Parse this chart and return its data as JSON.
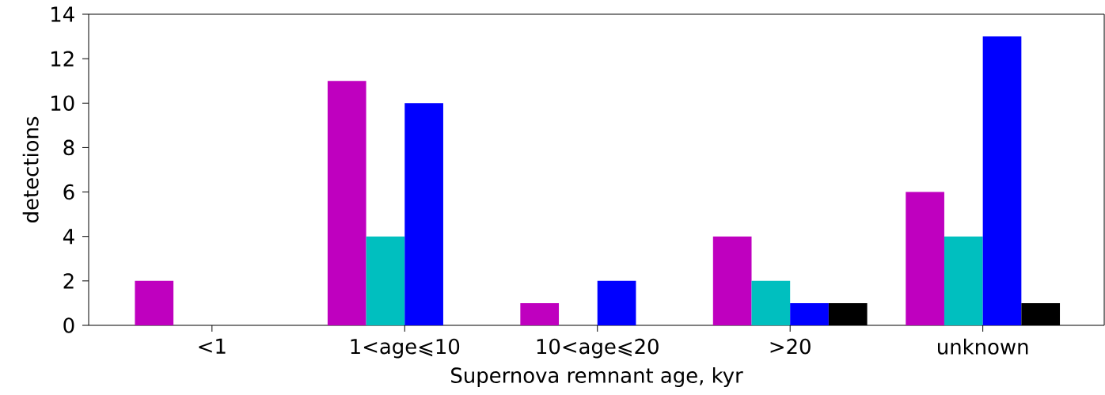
{
  "chart_data": {
    "type": "bar",
    "xlabel": "Supernova remnant age, kyr",
    "ylabel": "detections",
    "categories": [
      "<1",
      "1<age⩽10",
      "10<age⩽20",
      ">20",
      "unknown"
    ],
    "series": [
      {
        "color": "#bf00bf",
        "values": [
          2,
          11,
          1,
          4,
          6
        ]
      },
      {
        "color": "#00bfbf",
        "values": [
          0,
          4,
          0,
          2,
          4
        ]
      },
      {
        "color": "#0000ff",
        "values": [
          0,
          10,
          2,
          1,
          13
        ]
      },
      {
        "color": "#000000",
        "values": [
          0,
          0,
          0,
          1,
          1
        ]
      }
    ],
    "ylim": [
      0,
      14
    ],
    "yticks": [
      0,
      2,
      4,
      6,
      8,
      10,
      12,
      14
    ]
  }
}
